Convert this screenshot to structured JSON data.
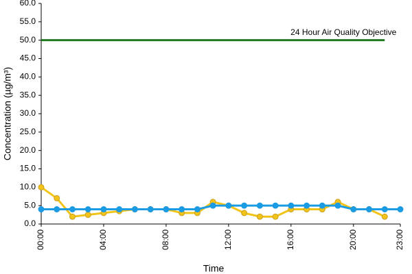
{
  "chart_data": {
    "type": "line",
    "x_label": "Time",
    "y_label": "Concentration (µg/m³)",
    "x": [
      0,
      1,
      2,
      3,
      4,
      5,
      6,
      7,
      8,
      9,
      10,
      11,
      12,
      13,
      14,
      15,
      16,
      17,
      18,
      19,
      20,
      21,
      22,
      23
    ],
    "xlim": [
      0,
      23
    ],
    "xticks": [
      {
        "value": 0,
        "label": "00:00"
      },
      {
        "value": 4,
        "label": "04:00"
      },
      {
        "value": 8,
        "label": "08:00"
      },
      {
        "value": 12,
        "label": "12:00"
      },
      {
        "value": 16,
        "label": "16:00"
      },
      {
        "value": 20,
        "label": "20:00"
      },
      {
        "value": 23,
        "label": "23:00"
      }
    ],
    "ylim": [
      0,
      60
    ],
    "yticks": [
      {
        "value": 0,
        "label": "0.0"
      },
      {
        "value": 5,
        "label": "5.0"
      },
      {
        "value": 10,
        "label": "10.0"
      },
      {
        "value": 15,
        "label": "15.0"
      },
      {
        "value": 20,
        "label": "20.0"
      },
      {
        "value": 25,
        "label": "25.0"
      },
      {
        "value": 30,
        "label": "30.0"
      },
      {
        "value": 35,
        "label": "35.0"
      },
      {
        "value": 40,
        "label": "40.0"
      },
      {
        "value": 45,
        "label": "45.0"
      },
      {
        "value": 50,
        "label": "50.0"
      },
      {
        "value": 55,
        "label": "55.0"
      },
      {
        "value": 60,
        "label": "60.0"
      }
    ],
    "grid": false,
    "series": [
      {
        "color": "#f2c318",
        "marker_edge": "#c9a020",
        "values": [
          10,
          7,
          2,
          2.5,
          3,
          3.5,
          4,
          4,
          4,
          3,
          3,
          6,
          5,
          3,
          2,
          2,
          4,
          4,
          4,
          6,
          4,
          4,
          2,
          null
        ]
      },
      {
        "color": "#1b9be3",
        "marker_edge": "#1b9be3",
        "values": [
          4,
          4,
          4,
          4,
          4,
          4,
          4,
          4,
          4,
          4,
          4,
          5,
          5,
          5,
          5,
          5,
          5,
          5,
          5,
          5,
          4,
          4,
          4,
          4
        ]
      }
    ],
    "reference_line": {
      "label": "24 Hour Air Quality Objective",
      "value": 50,
      "x": [
        0,
        22
      ],
      "color": "#1f7a1f"
    }
  }
}
